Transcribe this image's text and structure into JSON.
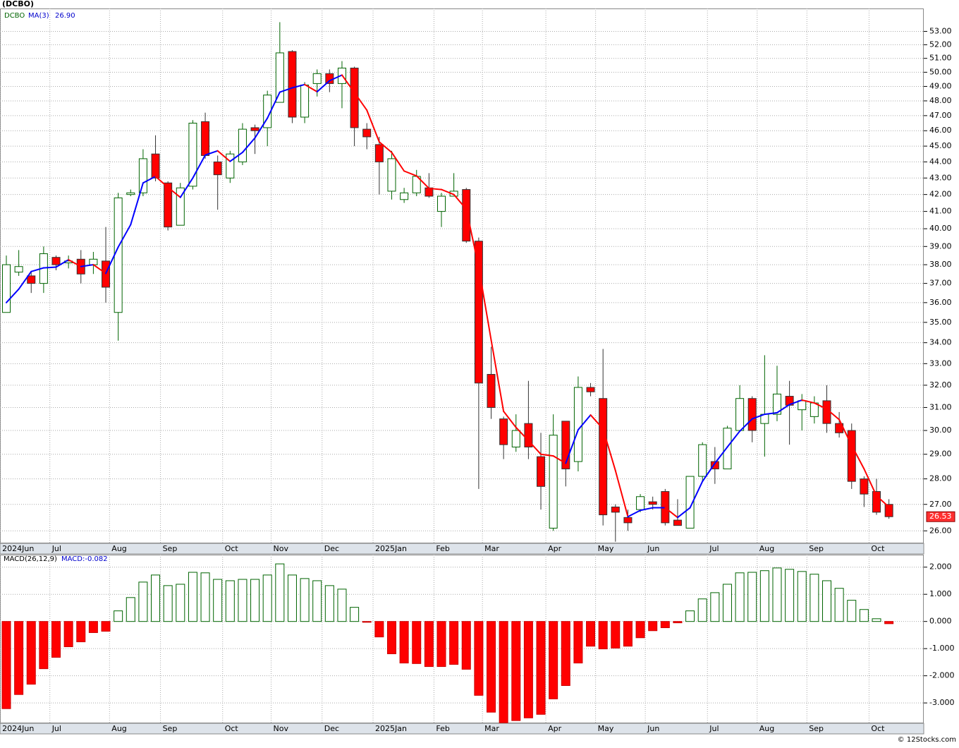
{
  "chart_data": {
    "type": "candlestick",
    "title": "(DCBO)",
    "symbol": "DCBO",
    "log_scale": true,
    "grid": true,
    "up_color": "#006400",
    "down_color": "#ff0000",
    "open": [
      35.5,
      37.6,
      37.4,
      37.0,
      38.4,
      38.1,
      38.3,
      38.0,
      38.2,
      35.5,
      42.0,
      42.1,
      44.5,
      42.7,
      40.2,
      42.5,
      46.6,
      44.0,
      43.0,
      44.0,
      46.2,
      46.2,
      47.9,
      51.5,
      46.9,
      49.2,
      49.9,
      49.2,
      50.3,
      46.1,
      45.1,
      42.2,
      41.7,
      42.1,
      42.4,
      41.0,
      41.9,
      42.3,
      39.3,
      32.5,
      30.5,
      29.3,
      30.3,
      28.9,
      26.1,
      30.4,
      28.7,
      31.9,
      31.4,
      26.9,
      26.5,
      26.8,
      27.1,
      27.5,
      26.4,
      26.1,
      28.1,
      28.7,
      28.4,
      30.0,
      31.4,
      30.3,
      30.7,
      31.5,
      30.9,
      30.6,
      31.3,
      30.3,
      30.0,
      28.0,
      27.5,
      27.0
    ],
    "high": [
      38.5,
      38.8,
      37.6,
      39.0,
      38.5,
      38.5,
      38.8,
      38.7,
      40.1,
      42.1,
      42.3,
      44.8,
      45.7,
      42.8,
      42.7,
      46.7,
      47.2,
      44.4,
      44.7,
      46.5,
      46.4,
      48.7,
      53.7,
      51.6,
      49.3,
      50.2,
      50.2,
      50.8,
      50.4,
      46.5,
      45.6,
      44.7,
      42.4,
      43.5,
      43.3,
      42.1,
      43.3,
      42.4,
      39.5,
      33.8,
      30.6,
      30.7,
      32.2,
      29.9,
      30.7,
      30.4,
      32.4,
      32.1,
      33.7,
      27.0,
      26.8,
      27.4,
      27.3,
      27.6,
      27.2,
      28.1,
      29.5,
      29.3,
      30.2,
      32.0,
      31.5,
      33.4,
      32.9,
      32.2,
      31.6,
      31.5,
      32.0,
      30.8,
      30.3,
      28.1,
      28.0,
      27.2
    ],
    "low": [
      35.5,
      37.4,
      36.5,
      36.5,
      37.7,
      37.8,
      37.0,
      37.5,
      36.0,
      34.1,
      41.9,
      41.9,
      42.8,
      39.9,
      40.2,
      42.3,
      44.2,
      41.1,
      42.7,
      43.8,
      44.5,
      45.0,
      47.9,
      46.5,
      46.5,
      48.3,
      48.6,
      47.5,
      45.0,
      44.8,
      42.0,
      41.7,
      41.5,
      41.9,
      41.8,
      40.1,
      41.9,
      39.2,
      27.6,
      30.5,
      28.8,
      29.1,
      28.8,
      26.8,
      26.0,
      27.7,
      28.3,
      31.5,
      26.2,
      25.6,
      26.0,
      26.7,
      26.8,
      26.2,
      26.2,
      26.1,
      27.9,
      27.8,
      28.4,
      30.0,
      29.5,
      28.9,
      30.4,
      29.4,
      30.0,
      30.3,
      29.9,
      29.7,
      27.6,
      26.9,
      26.6,
      26.45
    ],
    "close": [
      38.0,
      37.9,
      37.0,
      38.6,
      38.0,
      38.2,
      37.5,
      38.3,
      36.8,
      41.8,
      42.1,
      44.2,
      43.0,
      40.1,
      42.4,
      46.5,
      44.4,
      43.2,
      44.5,
      46.1,
      46.0,
      48.4,
      51.4,
      46.9,
      49.1,
      49.9,
      49.2,
      50.3,
      46.2,
      45.6,
      44.0,
      44.2,
      42.1,
      43.1,
      41.9,
      41.9,
      42.2,
      39.3,
      32.1,
      31.0,
      29.4,
      30.0,
      29.3,
      27.7,
      29.8,
      28.4,
      31.9,
      31.7,
      26.6,
      26.7,
      26.3,
      27.3,
      27.0,
      26.3,
      26.2,
      28.1,
      29.4,
      28.4,
      30.1,
      31.4,
      30.0,
      30.7,
      31.6,
      31.1,
      31.3,
      31.2,
      30.3,
      29.9,
      27.9,
      27.4,
      26.7,
      26.53
    ],
    "xlim": [
      -0.51,
      73.8
    ],
    "xticks": [
      {
        "value": -0.5,
        "label": "2024Jun"
      },
      {
        "value": 3.5,
        "label": "Jul"
      },
      {
        "value": 8.3,
        "label": "Aug"
      },
      {
        "value": 12.4,
        "label": "Sep"
      },
      {
        "value": 17.4,
        "label": "Oct"
      },
      {
        "value": 21.3,
        "label": "Nov"
      },
      {
        "value": 25.4,
        "label": "Dec"
      },
      {
        "value": 29.5,
        "label": "2025Jan"
      },
      {
        "value": 34.4,
        "label": "Feb"
      },
      {
        "value": 38.3,
        "label": "Mar"
      },
      {
        "value": 43.4,
        "label": "Apr"
      },
      {
        "value": 47.4,
        "label": "May"
      },
      {
        "value": 51.4,
        "label": "Jun"
      },
      {
        "value": 56.4,
        "label": "Jul"
      },
      {
        "value": 60.4,
        "label": "Aug"
      },
      {
        "value": 64.4,
        "label": "Sep"
      },
      {
        "value": 69.4,
        "label": "Oct"
      }
    ],
    "ylim": [
      25.54,
      54.76
    ],
    "yticks": [
      {
        "value": 26,
        "label": "26.00"
      },
      {
        "value": 27,
        "label": "27.00"
      },
      {
        "value": 28,
        "label": "28.00"
      },
      {
        "value": 29,
        "label": "29.00"
      },
      {
        "value": 30,
        "label": "30.00"
      },
      {
        "value": 31,
        "label": "31.00"
      },
      {
        "value": 32,
        "label": "32.00"
      },
      {
        "value": 33,
        "label": "33.00"
      },
      {
        "value": 34,
        "label": "34.00"
      },
      {
        "value": 35,
        "label": "35.00"
      },
      {
        "value": 36,
        "label": "36.00"
      },
      {
        "value": 37,
        "label": "37.00"
      },
      {
        "value": 38,
        "label": "38.00"
      },
      {
        "value": 39,
        "label": "39.00"
      },
      {
        "value": 40,
        "label": "40.00"
      },
      {
        "value": 41,
        "label": "41.00"
      },
      {
        "value": 42,
        "label": "42.00"
      },
      {
        "value": 43,
        "label": "43.00"
      },
      {
        "value": 44,
        "label": "44.00"
      },
      {
        "value": 45,
        "label": "45.00"
      },
      {
        "value": 46,
        "label": "46.00"
      },
      {
        "value": 47,
        "label": "47.00"
      },
      {
        "value": 48,
        "label": "48.00"
      },
      {
        "value": 49,
        "label": "49.00"
      },
      {
        "value": 50,
        "label": "50.00"
      },
      {
        "value": 51,
        "label": "51.00"
      },
      {
        "value": 52,
        "label": "52.00"
      },
      {
        "value": 53,
        "label": "53.00"
      }
    ],
    "ma": {
      "name": "MA(3)",
      "current": "26.90",
      "up_color": "#0000ff",
      "down_color": "#ff0000",
      "values": [
        36.0,
        36.7,
        37.63,
        37.83,
        37.87,
        38.27,
        37.9,
        38.0,
        37.53,
        38.97,
        40.23,
        42.7,
        43.1,
        42.43,
        41.83,
        43.0,
        44.43,
        44.7,
        44.03,
        44.6,
        45.53,
        46.83,
        48.6,
        48.9,
        49.13,
        48.63,
        49.4,
        49.8,
        48.57,
        47.37,
        45.27,
        44.6,
        43.43,
        43.13,
        42.37,
        42.3,
        42.0,
        41.13,
        37.87,
        34.13,
        30.83,
        30.13,
        29.57,
        29.0,
        28.93,
        28.63,
        30.03,
        30.67,
        30.07,
        28.33,
        26.53,
        26.77,
        26.87,
        26.87,
        26.5,
        26.87,
        27.9,
        28.63,
        29.3,
        29.97,
        30.5,
        30.7,
        30.77,
        31.13,
        31.33,
        31.2,
        30.93,
        30.47,
        29.37,
        28.4,
        27.33,
        26.9
      ]
    },
    "macd": {
      "type": "bar",
      "name": "MACD(26,12,9)",
      "current": "MACD:-0.082",
      "up_color": "#006400",
      "down_color": "#ff0000",
      "values": [
        -3.21,
        -2.69,
        -2.31,
        -1.74,
        -1.32,
        -0.93,
        -0.75,
        -0.41,
        -0.36,
        0.39,
        0.88,
        1.45,
        1.71,
        1.32,
        1.37,
        1.81,
        1.79,
        1.55,
        1.5,
        1.55,
        1.55,
        1.71,
        2.12,
        1.71,
        1.58,
        1.5,
        1.32,
        1.19,
        0.52,
        -0.03,
        -0.57,
        -1.19,
        -1.53,
        -1.55,
        -1.66,
        -1.66,
        -1.58,
        -1.76,
        -2.72,
        -3.34,
        -3.73,
        -3.65,
        -3.55,
        -3.42,
        -2.85,
        -2.36,
        -1.53,
        -0.91,
        -1.01,
        -0.98,
        -0.91,
        -0.6,
        -0.34,
        -0.23,
        -0.05,
        0.39,
        0.83,
        1.06,
        1.37,
        1.79,
        1.81,
        1.87,
        1.97,
        1.92,
        1.84,
        1.74,
        1.5,
        1.22,
        0.78,
        0.44,
        0.1,
        -0.082
      ],
      "ylim": [
        -3.75,
        2.46
      ],
      "yticks": [
        {
          "value": -3,
          "label": "-3.000"
        },
        {
          "value": -2,
          "label": "-2.000"
        },
        {
          "value": -1,
          "label": "-1.000"
        },
        {
          "value": 0,
          "label": "0.000"
        },
        {
          "value": 1,
          "label": "1.000"
        },
        {
          "value": 2,
          "label": "2.000"
        }
      ]
    },
    "watermark": "© 12Stocks.com"
  }
}
